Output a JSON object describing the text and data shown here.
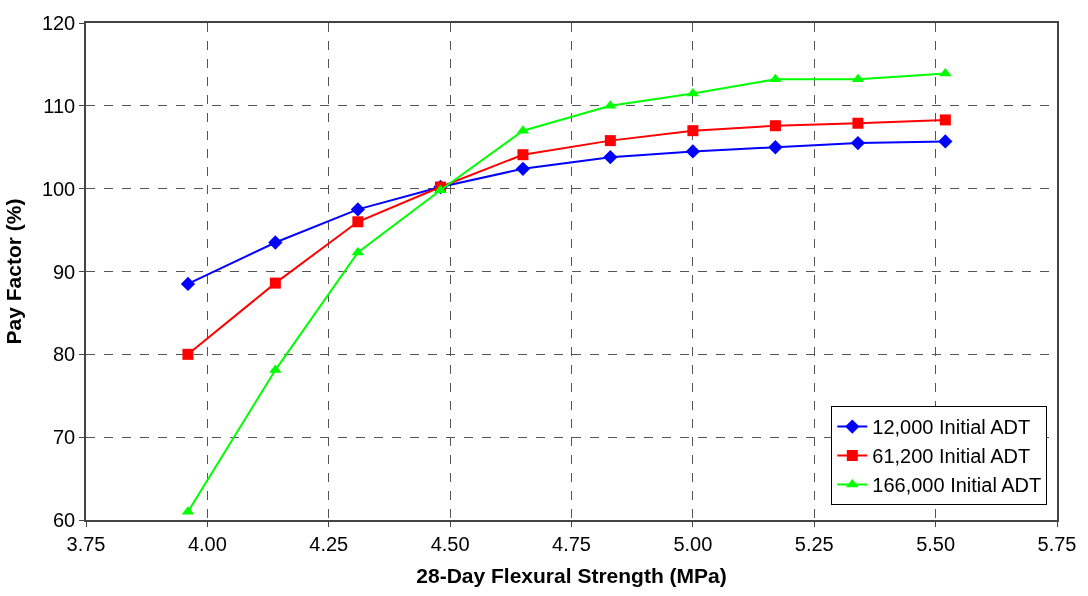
{
  "chart_data": {
    "type": "line",
    "xlabel": "28-Day Flexural Strength (MPa)",
    "ylabel": "Pay Factor (%)",
    "x": [
      3.96,
      4.14,
      4.31,
      4.48,
      4.65,
      4.83,
      5.0,
      5.17,
      5.34,
      5.52
    ],
    "series": [
      {
        "name": "12,000 Initial ADT",
        "color": "#0000ff",
        "marker": "diamond",
        "values": [
          88.5,
          93.5,
          97.5,
          100.2,
          102.4,
          103.8,
          104.5,
          105.0,
          105.5,
          105.7
        ]
      },
      {
        "name": "61,200 Initial ADT",
        "color": "#ff0000",
        "marker": "square",
        "values": [
          80,
          88.6,
          96,
          100.2,
          104.1,
          105.8,
          107,
          107.6,
          107.9,
          108.3
        ]
      },
      {
        "name": "166,000 Initial ADT",
        "color": "#00ff00",
        "marker": "triangle",
        "values": [
          61,
          78.1,
          92.3,
          99.8,
          107,
          110,
          111.5,
          113.2,
          113.2,
          113.9
        ]
      }
    ],
    "xlim": [
      3.75,
      5.75
    ],
    "xticks": [
      3.75,
      {
        "value": 4,
        "label": "4.00"
      },
      4.25,
      {
        "value": 4.5,
        "label": "4.50"
      },
      4.75,
      {
        "value": 5,
        "label": "5.00"
      },
      5.25,
      {
        "value": 5.5,
        "label": "5.50"
      },
      5.75
    ],
    "ylim": [
      60,
      120
    ],
    "yticks": [
      60,
      70,
      80,
      90,
      100,
      110,
      120
    ],
    "grid": true,
    "legend": "bottom right",
    "line_style": "solid"
  }
}
